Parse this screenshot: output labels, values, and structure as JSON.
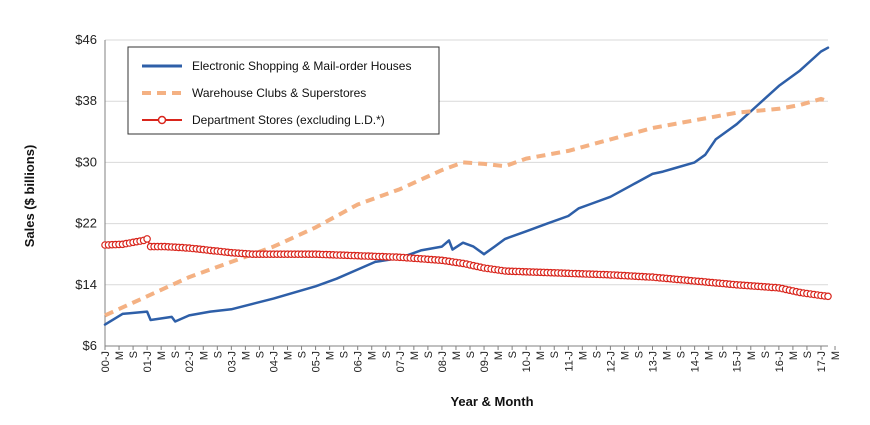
{
  "chart_data": {
    "type": "line",
    "title": "",
    "xlabel": "Year & Month",
    "ylabel": "Sales ($ billions)",
    "ylim": [
      6,
      46
    ],
    "yticks": [
      6,
      14,
      22,
      30,
      38,
      46
    ],
    "ytick_labels": [
      "$6",
      "$14",
      "$22",
      "$30",
      "$38",
      "$46"
    ],
    "xlim": [
      "2000-01",
      "2017-03"
    ],
    "x_tick_labels": [
      "00-J",
      "M",
      "S",
      "01-J",
      "M",
      "S",
      "02-J",
      "M",
      "S",
      "03-J",
      "M",
      "S",
      "04-J",
      "M",
      "S",
      "05-J",
      "M",
      "S",
      "06-J",
      "M",
      "S",
      "07-J",
      "M",
      "S",
      "08-J",
      "M",
      "S",
      "09-J",
      "M",
      "S",
      "10-J",
      "M",
      "S",
      "11-J",
      "M",
      "S",
      "12-J",
      "M",
      "S",
      "13-J",
      "M",
      "S",
      "14-J",
      "M",
      "S",
      "15-J",
      "M",
      "S",
      "16-J",
      "M",
      "S",
      "17-J",
      "M"
    ],
    "grid": "horizontal",
    "legend_position": "top-left",
    "series": [
      {
        "name": "Electronic Shopping & Mail-order Houses",
        "color": "#2e5fa8",
        "style": "solid",
        "x": [
          "2000-01",
          "2000-06",
          "2001-01",
          "2001-02",
          "2001-08",
          "2001-09",
          "2002-01",
          "2002-07",
          "2003-01",
          "2003-07",
          "2004-01",
          "2004-07",
          "2005-01",
          "2005-07",
          "2006-01",
          "2006-06",
          "2007-01",
          "2007-07",
          "2008-01",
          "2008-03",
          "2008-04",
          "2008-07",
          "2008-10",
          "2009-01",
          "2009-04",
          "2009-07",
          "2010-01",
          "2010-07",
          "2011-01",
          "2011-04",
          "2011-07",
          "2012-01",
          "2012-07",
          "2013-01",
          "2013-04",
          "2013-07",
          "2014-01",
          "2014-04",
          "2014-07",
          "2015-01",
          "2015-07",
          "2016-01",
          "2016-07",
          "2017-01",
          "2017-03"
        ],
        "values": [
          8.8,
          10.2,
          10.5,
          9.4,
          9.8,
          9.2,
          10.0,
          10.5,
          10.8,
          11.5,
          12.2,
          13.0,
          13.8,
          14.8,
          16.0,
          17.0,
          17.5,
          18.5,
          19.0,
          19.8,
          18.6,
          19.5,
          19.0,
          18.0,
          19.0,
          20.0,
          21.0,
          22.0,
          23.0,
          24.0,
          24.5,
          25.5,
          27.0,
          28.5,
          28.8,
          29.2,
          30.0,
          31.0,
          33.0,
          35.0,
          37.5,
          40.0,
          42.0,
          44.5,
          45.0
        ]
      },
      {
        "name": "Warehouse Clubs & Superstores",
        "color": "#f4b183",
        "style": "dashed",
        "x": [
          "2000-01",
          "2001-01",
          "2002-01",
          "2003-01",
          "2004-01",
          "2005-01",
          "2006-01",
          "2007-01",
          "2008-01",
          "2008-07",
          "2009-01",
          "2009-07",
          "2010-01",
          "2011-01",
          "2012-01",
          "2013-01",
          "2014-01",
          "2015-01",
          "2016-01",
          "2016-07",
          "2017-01",
          "2017-03"
        ],
        "values": [
          10.0,
          12.5,
          15.0,
          17.0,
          19.0,
          21.5,
          24.5,
          26.5,
          29.0,
          30.0,
          29.8,
          29.5,
          30.5,
          31.5,
          33.0,
          34.5,
          35.5,
          36.5,
          37.0,
          37.5,
          38.3,
          38.0
        ]
      },
      {
        "name": "Department Stores (excluding L.D.*)",
        "color": "#d9251c",
        "style": "solid-markers",
        "x": [
          "2000-01",
          "2000-06",
          "2000-12",
          "2001-01",
          "2001-02",
          "2001-06",
          "2002-01",
          "2002-07",
          "2003-01",
          "2003-07",
          "2004-01",
          "2004-07",
          "2005-01",
          "2005-07",
          "2006-01",
          "2006-07",
          "2007-01",
          "2007-07",
          "2008-01",
          "2008-07",
          "2009-01",
          "2009-07",
          "2010-01",
          "2010-07",
          "2011-01",
          "2012-01",
          "2013-01",
          "2014-01",
          "2015-01",
          "2016-01",
          "2016-07",
          "2017-01",
          "2017-03"
        ],
        "values": [
          19.2,
          19.3,
          19.8,
          20.0,
          19.0,
          19.0,
          18.8,
          18.5,
          18.2,
          18.0,
          18.0,
          18.0,
          18.0,
          17.9,
          17.8,
          17.7,
          17.6,
          17.4,
          17.2,
          16.8,
          16.2,
          15.8,
          15.7,
          15.6,
          15.5,
          15.3,
          15.0,
          14.5,
          14.0,
          13.6,
          13.0,
          12.6,
          12.5
        ]
      }
    ]
  }
}
